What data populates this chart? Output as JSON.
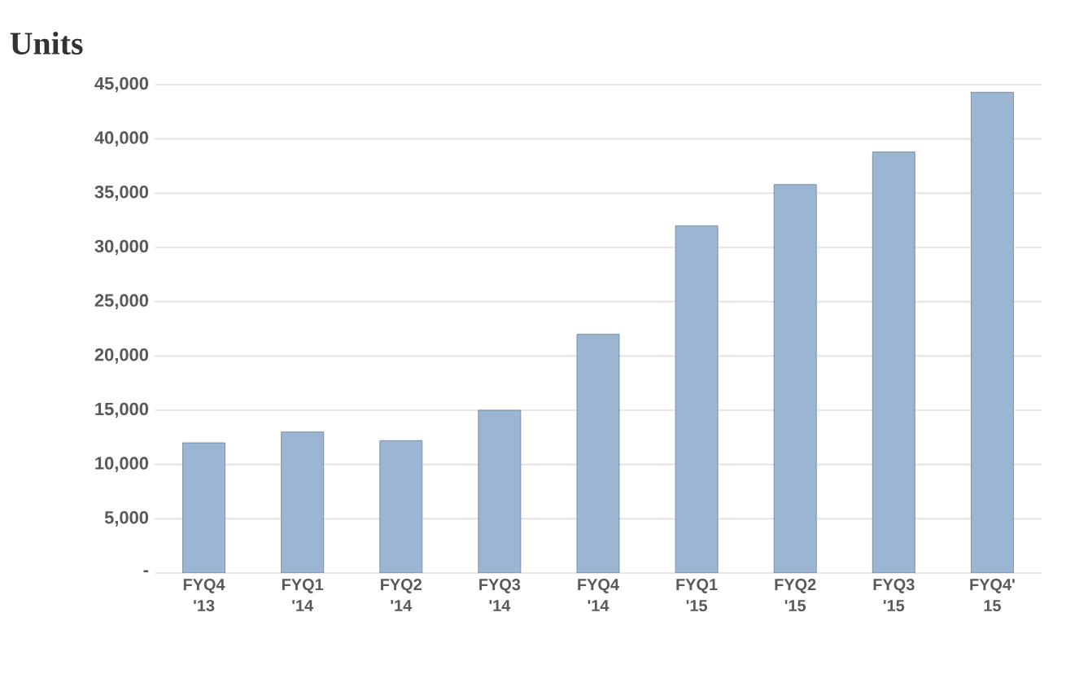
{
  "chart_data": {
    "type": "bar",
    "title": "Units",
    "categories": [
      "FYQ4 '13",
      "FYQ1 '14",
      "FYQ2 '14",
      "FYQ3 '14",
      "FYQ4 '14",
      "FYQ1 '15",
      "FYQ2 '15",
      "FYQ3 '15",
      "FYQ4' 15"
    ],
    "values": [
      12000,
      13000,
      12200,
      15000,
      22000,
      32000,
      35800,
      38800,
      44300
    ],
    "color": "#9bb5d3",
    "ylim": [
      0,
      45000
    ],
    "yticks": [
      {
        "value": 0,
        "label": "-"
      },
      {
        "value": 5000,
        "label": "5,000"
      },
      {
        "value": 10000,
        "label": "10,000"
      },
      {
        "value": 15000,
        "label": "15,000"
      },
      {
        "value": 20000,
        "label": "20,000"
      },
      {
        "value": 25000,
        "label": "25,000"
      },
      {
        "value": 30000,
        "label": "30,000"
      },
      {
        "value": 35000,
        "label": "35,000"
      },
      {
        "value": 40000,
        "label": "40,000"
      },
      {
        "value": 45000,
        "label": "45,000"
      }
    ],
    "grid": "y"
  }
}
